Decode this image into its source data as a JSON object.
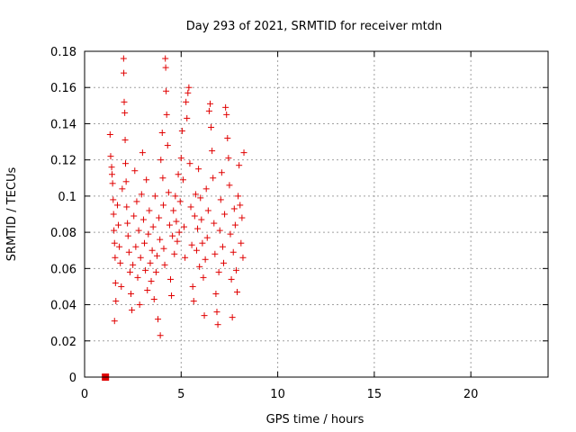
{
  "chart_data": {
    "type": "scatter",
    "title": "Day 293 of 2021, SRMTID for receiver mtdn",
    "xlabel": "GPS time / hours",
    "ylabel": "SRMTID / TECUs",
    "xlim": [
      0,
      24
    ],
    "ylim": [
      0,
      0.18
    ],
    "x_ticks": [
      "0",
      "5",
      "10",
      "15",
      "20"
    ],
    "y_ticks": [
      "0",
      "0.02",
      "0.04",
      "0.06",
      "0.08",
      "0.1",
      "0.12",
      "0.14",
      "0.16",
      "0.18"
    ],
    "grid": true,
    "marker": "plus",
    "color": "#e00000",
    "data_region_x": [
      1.3,
      8.3
    ],
    "box_marker": {
      "x": 1.08,
      "y": 0
    },
    "series": [
      {
        "points": [
          [
            1.32,
            0.134
          ],
          [
            1.35,
            0.122
          ],
          [
            1.4,
            0.116
          ],
          [
            1.42,
            0.112
          ],
          [
            1.45,
            0.107
          ],
          [
            1.48,
            0.098
          ],
          [
            1.5,
            0.09
          ],
          [
            1.52,
            0.081
          ],
          [
            1.55,
            0.074
          ],
          [
            1.58,
            0.066
          ],
          [
            1.6,
            0.052
          ],
          [
            1.62,
            0.042
          ],
          [
            1.55,
            0.031
          ],
          [
            1.7,
            0.095
          ],
          [
            1.75,
            0.084
          ],
          [
            1.8,
            0.072
          ],
          [
            1.85,
            0.063
          ],
          [
            1.9,
            0.05
          ],
          [
            1.95,
            0.104
          ],
          [
            2.02,
            0.176
          ],
          [
            2.03,
            0.168
          ],
          [
            2.05,
            0.152
          ],
          [
            2.08,
            0.146
          ],
          [
            2.1,
            0.131
          ],
          [
            2.12,
            0.118
          ],
          [
            2.15,
            0.108
          ],
          [
            2.18,
            0.094
          ],
          [
            2.22,
            0.085
          ],
          [
            2.25,
            0.078
          ],
          [
            2.3,
            0.069
          ],
          [
            2.35,
            0.058
          ],
          [
            2.4,
            0.046
          ],
          [
            2.45,
            0.037
          ],
          [
            2.5,
            0.062
          ],
          [
            2.55,
            0.089
          ],
          [
            2.6,
            0.114
          ],
          [
            2.65,
            0.072
          ],
          [
            2.7,
            0.097
          ],
          [
            2.75,
            0.055
          ],
          [
            2.8,
            0.081
          ],
          [
            2.85,
            0.04
          ],
          [
            2.9,
            0.066
          ],
          [
            2.95,
            0.101
          ],
          [
            3.0,
            0.124
          ],
          [
            3.05,
            0.087
          ],
          [
            3.1,
            0.074
          ],
          [
            3.15,
            0.059
          ],
          [
            3.2,
            0.109
          ],
          [
            3.25,
            0.048
          ],
          [
            3.3,
            0.079
          ],
          [
            3.35,
            0.092
          ],
          [
            3.4,
            0.063
          ],
          [
            3.45,
            0.053
          ],
          [
            3.5,
            0.07
          ],
          [
            3.55,
            0.083
          ],
          [
            3.6,
            0.043
          ],
          [
            3.65,
            0.1
          ],
          [
            3.7,
            0.058
          ],
          [
            3.75,
            0.067
          ],
          [
            3.8,
            0.032
          ],
          [
            3.85,
            0.088
          ],
          [
            3.9,
            0.076
          ],
          [
            3.92,
            0.023
          ],
          [
            3.95,
            0.12
          ],
          [
            4.02,
            0.135
          ],
          [
            4.05,
            0.11
          ],
          [
            4.08,
            0.095
          ],
          [
            4.1,
            0.071
          ],
          [
            4.15,
            0.062
          ],
          [
            4.18,
            0.176
          ],
          [
            4.2,
            0.171
          ],
          [
            4.22,
            0.158
          ],
          [
            4.25,
            0.145
          ],
          [
            4.3,
            0.128
          ],
          [
            4.35,
            0.102
          ],
          [
            4.4,
            0.084
          ],
          [
            4.45,
            0.054
          ],
          [
            4.5,
            0.045
          ],
          [
            4.55,
            0.078
          ],
          [
            4.6,
            0.092
          ],
          [
            4.65,
            0.068
          ],
          [
            4.7,
            0.1
          ],
          [
            4.75,
            0.086
          ],
          [
            4.8,
            0.075
          ],
          [
            4.85,
            0.112
          ],
          [
            4.9,
            0.08
          ],
          [
            4.95,
            0.097
          ],
          [
            5.0,
            0.121
          ],
          [
            5.05,
            0.136
          ],
          [
            5.1,
            0.109
          ],
          [
            5.15,
            0.083
          ],
          [
            5.2,
            0.066
          ],
          [
            5.25,
            0.152
          ],
          [
            5.3,
            0.143
          ],
          [
            5.35,
            0.157
          ],
          [
            5.4,
            0.16
          ],
          [
            5.45,
            0.118
          ],
          [
            5.5,
            0.094
          ],
          [
            5.55,
            0.073
          ],
          [
            5.6,
            0.05
          ],
          [
            5.65,
            0.042
          ],
          [
            5.7,
            0.089
          ],
          [
            5.75,
            0.101
          ],
          [
            5.8,
            0.07
          ],
          [
            5.85,
            0.082
          ],
          [
            5.9,
            0.115
          ],
          [
            5.95,
            0.061
          ],
          [
            6.0,
            0.099
          ],
          [
            6.05,
            0.087
          ],
          [
            6.1,
            0.074
          ],
          [
            6.15,
            0.055
          ],
          [
            6.2,
            0.034
          ],
          [
            6.25,
            0.065
          ],
          [
            6.3,
            0.104
          ],
          [
            6.35,
            0.077
          ],
          [
            6.4,
            0.092
          ],
          [
            6.45,
            0.147
          ],
          [
            6.5,
            0.151
          ],
          [
            6.55,
            0.138
          ],
          [
            6.6,
            0.125
          ],
          [
            6.65,
            0.11
          ],
          [
            6.7,
            0.085
          ],
          [
            6.75,
            0.068
          ],
          [
            6.8,
            0.046
          ],
          [
            6.85,
            0.036
          ],
          [
            6.9,
            0.029
          ],
          [
            6.95,
            0.058
          ],
          [
            7.0,
            0.081
          ],
          [
            7.05,
            0.098
          ],
          [
            7.1,
            0.113
          ],
          [
            7.15,
            0.072
          ],
          [
            7.2,
            0.063
          ],
          [
            7.25,
            0.09
          ],
          [
            7.3,
            0.149
          ],
          [
            7.35,
            0.145
          ],
          [
            7.4,
            0.132
          ],
          [
            7.45,
            0.121
          ],
          [
            7.5,
            0.106
          ],
          [
            7.55,
            0.079
          ],
          [
            7.6,
            0.054
          ],
          [
            7.65,
            0.033
          ],
          [
            7.7,
            0.069
          ],
          [
            7.75,
            0.093
          ],
          [
            7.8,
            0.084
          ],
          [
            7.85,
            0.059
          ],
          [
            7.9,
            0.047
          ],
          [
            7.95,
            0.1
          ],
          [
            8.0,
            0.117
          ],
          [
            8.05,
            0.095
          ],
          [
            8.1,
            0.074
          ],
          [
            8.15,
            0.088
          ],
          [
            8.2,
            0.066
          ],
          [
            8.25,
            0.124
          ]
        ]
      }
    ]
  }
}
